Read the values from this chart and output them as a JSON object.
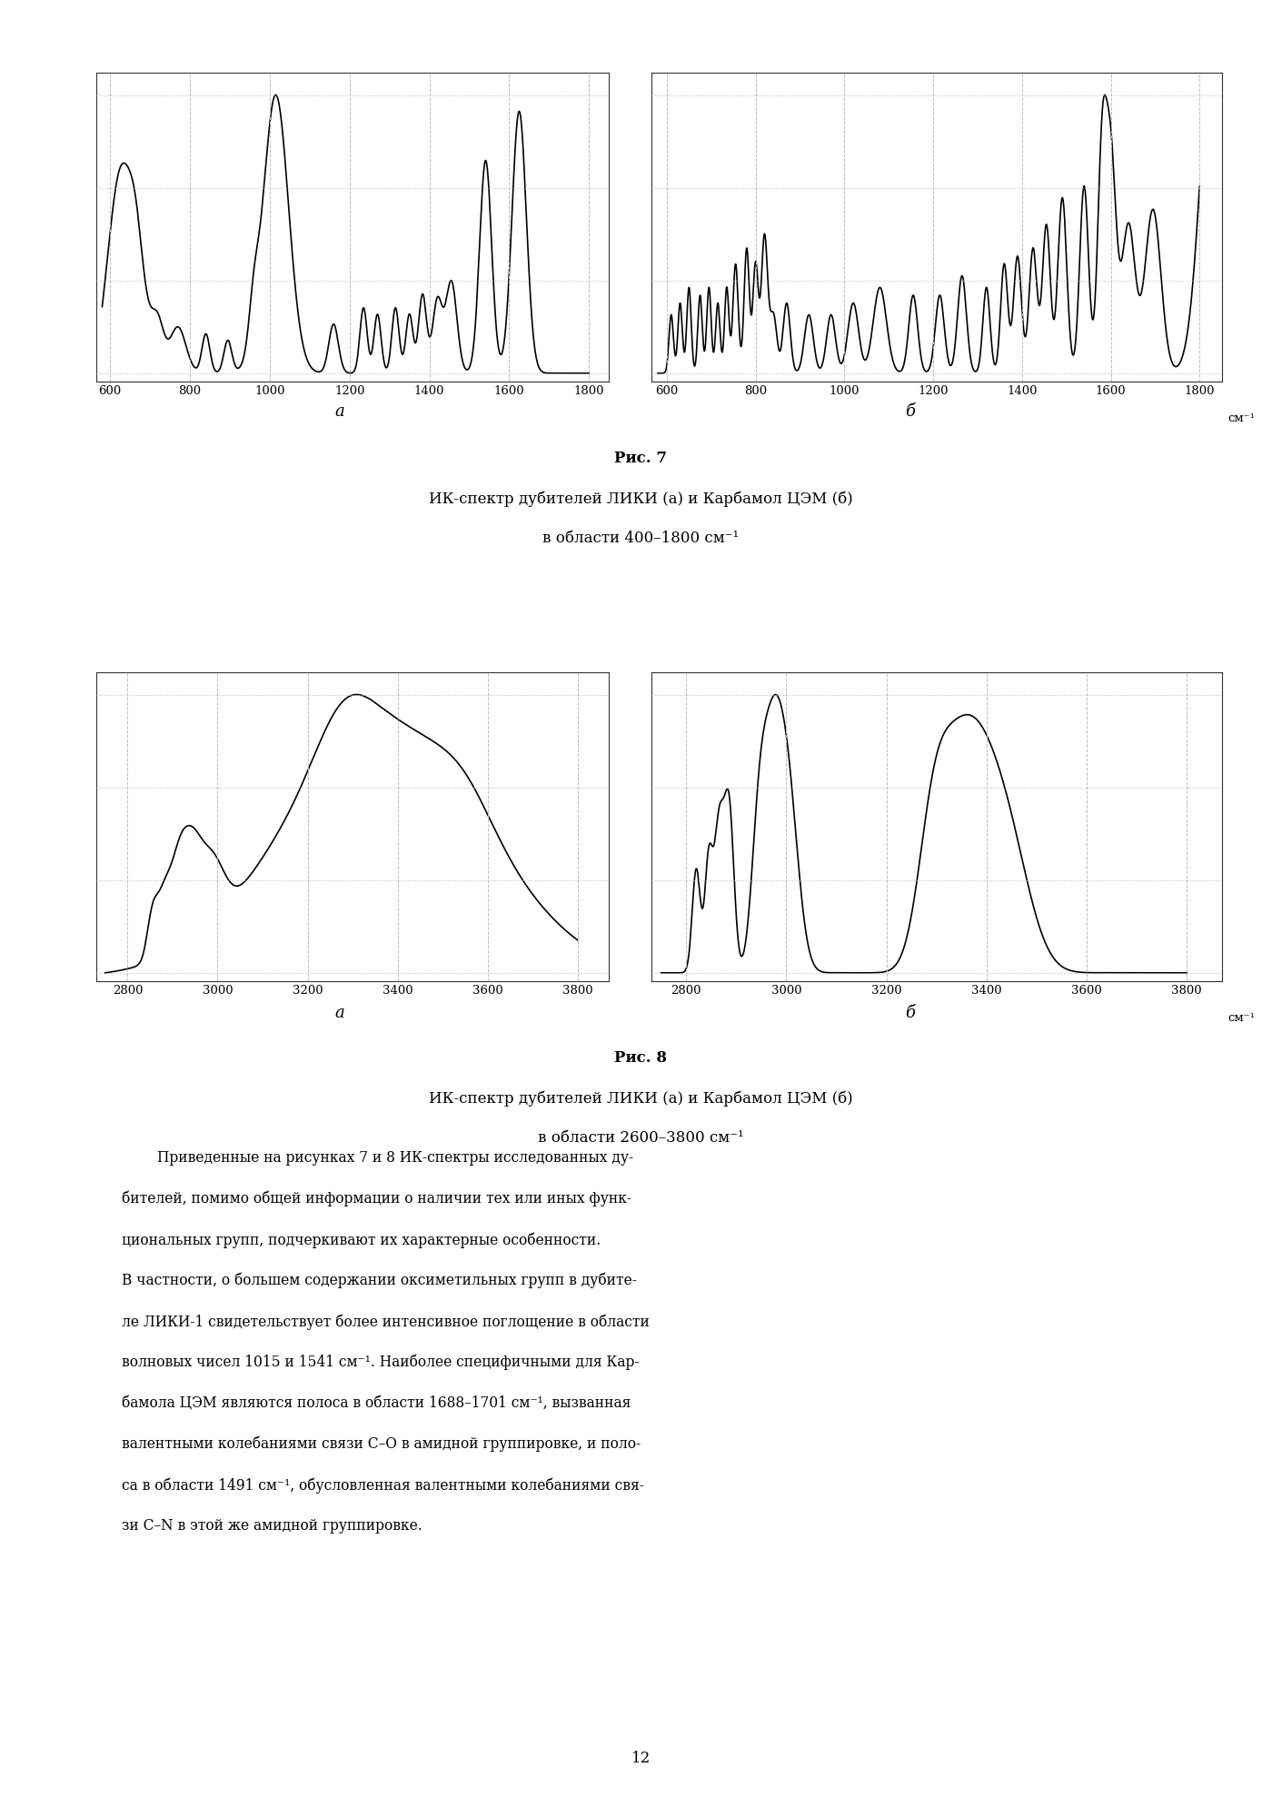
{
  "fig7_caption_bold": "Рис. 7",
  "fig7_caption_line2": "ИК-спектр дубителей ЛИКИ (а) и Карбамол ЦЭМ (б)",
  "fig7_caption_line3": "в области 400–1800 см⁻¹",
  "fig8_caption_bold": "Рис. 8",
  "fig8_caption_line2": "ИК-спектр дубителей ЛИКИ (а) и Карбамол ЦЭМ (б)",
  "fig8_caption_line3": "в области 2600–3800 см⁻¹",
  "label_a": "а",
  "label_b": "б",
  "fig7_xticks": [
    1800,
    1600,
    1400,
    1200,
    1000,
    800,
    600
  ],
  "fig8_xticks": [
    3800,
    3600,
    3400,
    3200,
    3000,
    2800
  ],
  "grid_color": "#bbbbbb",
  "line_color": "#000000",
  "body_text_lines": [
    "        Приведенные на рисунках 7 и 8 ИК-спектры исследованных ду-",
    "бителей, помимо общей информации о наличии тех или иных функ-",
    "циональных групп, подчеркивают их характерные особенности.",
    "В частности, о большем содержании оксиметильных групп в дубите-",
    "ле ЛИКИ-1 свидетельствует более интенсивное поглощение в области",
    "волновых чисел 1015 и 1541 см⁻¹. Наиболее специфичными для Кар-",
    "бамола ЦЭМ являются полоса в области 1688–1701 см⁻¹, вызванная",
    "валентными колебаниями связи С–О в амидной группировке, и поло-",
    "са в области 1491 см⁻¹, обусловленная валентными колебаниями свя-",
    "зи С–N в этой же амидной группировке."
  ],
  "page_number": "12"
}
